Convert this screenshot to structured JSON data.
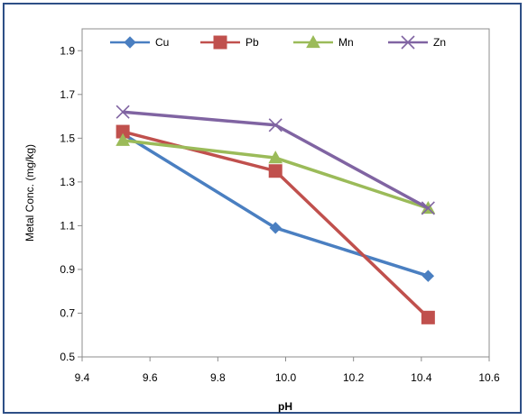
{
  "chart_data": {
    "type": "line",
    "title": "",
    "xlabel": "pH",
    "ylabel": "Metal Conc. (mg/kg)",
    "xlim": [
      9.4,
      10.6
    ],
    "ylim": [
      0.5,
      2.0
    ],
    "x_ticks": [
      "9.4",
      "9.6",
      "9.8",
      "10.0",
      "10.2",
      "10.4",
      "10.6"
    ],
    "y_ticks": [
      "0.5",
      "0.7",
      "0.9",
      "1.1",
      "1.3",
      "1.5",
      "1.7",
      "1.9"
    ],
    "grid": false,
    "legend_position": "top",
    "series": [
      {
        "name": "Cu",
        "color": "#4a7fc1",
        "marker": "diamond",
        "points": [
          [
            9.52,
            1.52
          ],
          [
            9.97,
            1.09
          ],
          [
            10.42,
            0.87
          ]
        ]
      },
      {
        "name": "Pb",
        "color": "#c0504d",
        "marker": "square",
        "points": [
          [
            9.52,
            1.53
          ],
          [
            9.97,
            1.35
          ],
          [
            10.42,
            0.68
          ]
        ]
      },
      {
        "name": "Mn",
        "color": "#9bbb59",
        "marker": "triangle",
        "points": [
          [
            9.52,
            1.49
          ],
          [
            9.97,
            1.41
          ],
          [
            10.42,
            1.18
          ]
        ]
      },
      {
        "name": "Zn",
        "color": "#8064a2",
        "marker": "x",
        "points": [
          [
            9.52,
            1.62
          ],
          [
            9.97,
            1.56
          ],
          [
            10.42,
            1.18
          ]
        ]
      }
    ]
  }
}
